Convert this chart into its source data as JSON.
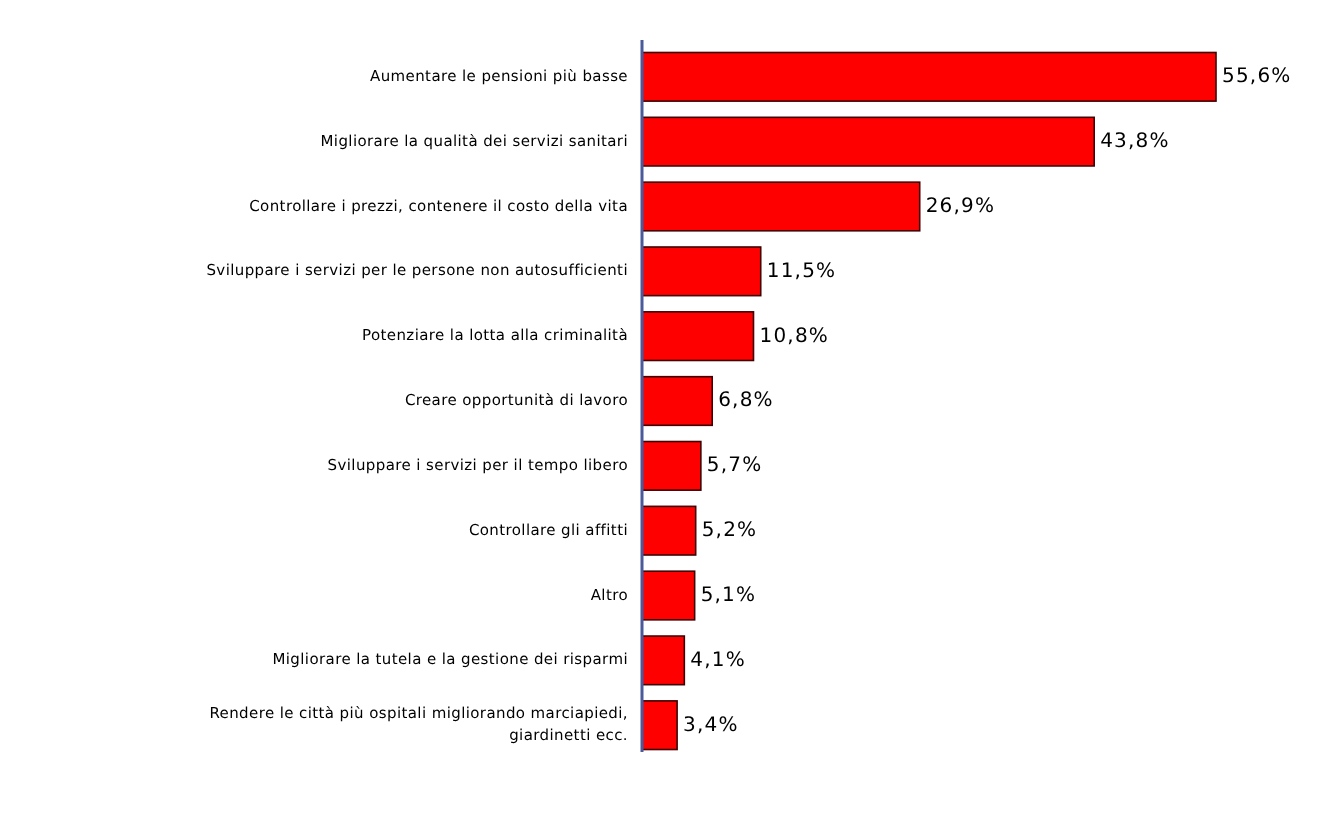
{
  "chart_data": {
    "type": "bar",
    "orientation": "horizontal",
    "color": "#ff0000",
    "value_labels": [
      "55,6%",
      "43,8%",
      "26,9%",
      "11,5%",
      "10,8%",
      "6,8%",
      "5,7%",
      "5,2%",
      "5,1%",
      "4,1%",
      "3,4%"
    ],
    "categories": [
      "Aumentare le pensioni più basse",
      "Migliorare la qualità dei servizi sanitari",
      "Controllare i prezzi, contenere il costo della vita",
      "Sviluppare i servizi per le persone non autosufficienti",
      "Potenziare la lotta alla criminalità",
      "Creare opportunità di lavoro",
      "Sviluppare i servizi per il tempo libero",
      "Controllare gli affitti",
      "Altro",
      "Migliorare la tutela e la gestione dei risparmi",
      "Rendere le città più ospitali migliorando marciapiedi, giardinetti ecc."
    ],
    "values": [
      55.6,
      43.8,
      26.9,
      11.5,
      10.8,
      6.8,
      5.7,
      5.2,
      5.1,
      4.1,
      3.4
    ]
  }
}
